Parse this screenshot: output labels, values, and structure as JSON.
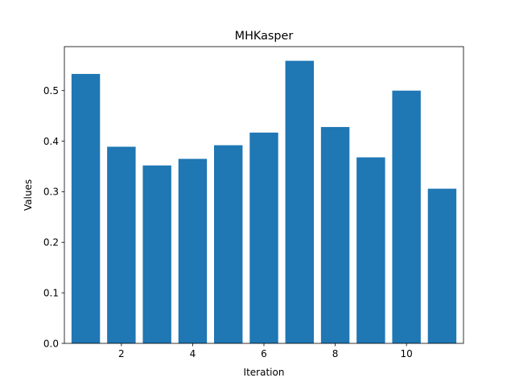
{
  "chart_data": {
    "type": "bar",
    "title": "MHKasper",
    "xlabel": "Iteration",
    "ylabel": "Values",
    "x": [
      1,
      2,
      3,
      4,
      5,
      6,
      7,
      8,
      9,
      10,
      11
    ],
    "values": [
      0.533,
      0.389,
      0.352,
      0.365,
      0.392,
      0.417,
      0.559,
      0.428,
      0.368,
      0.5,
      0.306
    ],
    "xlim": [
      0.4,
      11.6
    ],
    "ylim": [
      0,
      0.587
    ],
    "xticks": [
      2,
      4,
      6,
      8,
      10
    ],
    "xtick_labels": [
      "2",
      "4",
      "6",
      "8",
      "10"
    ],
    "yticks": [
      0.0,
      0.1,
      0.2,
      0.3,
      0.4,
      0.5
    ],
    "ytick_labels": [
      "0.0",
      "0.1",
      "0.2",
      "0.3",
      "0.4",
      "0.5"
    ],
    "bar_color": "#1f77b4",
    "grid": false,
    "legend": false
  }
}
